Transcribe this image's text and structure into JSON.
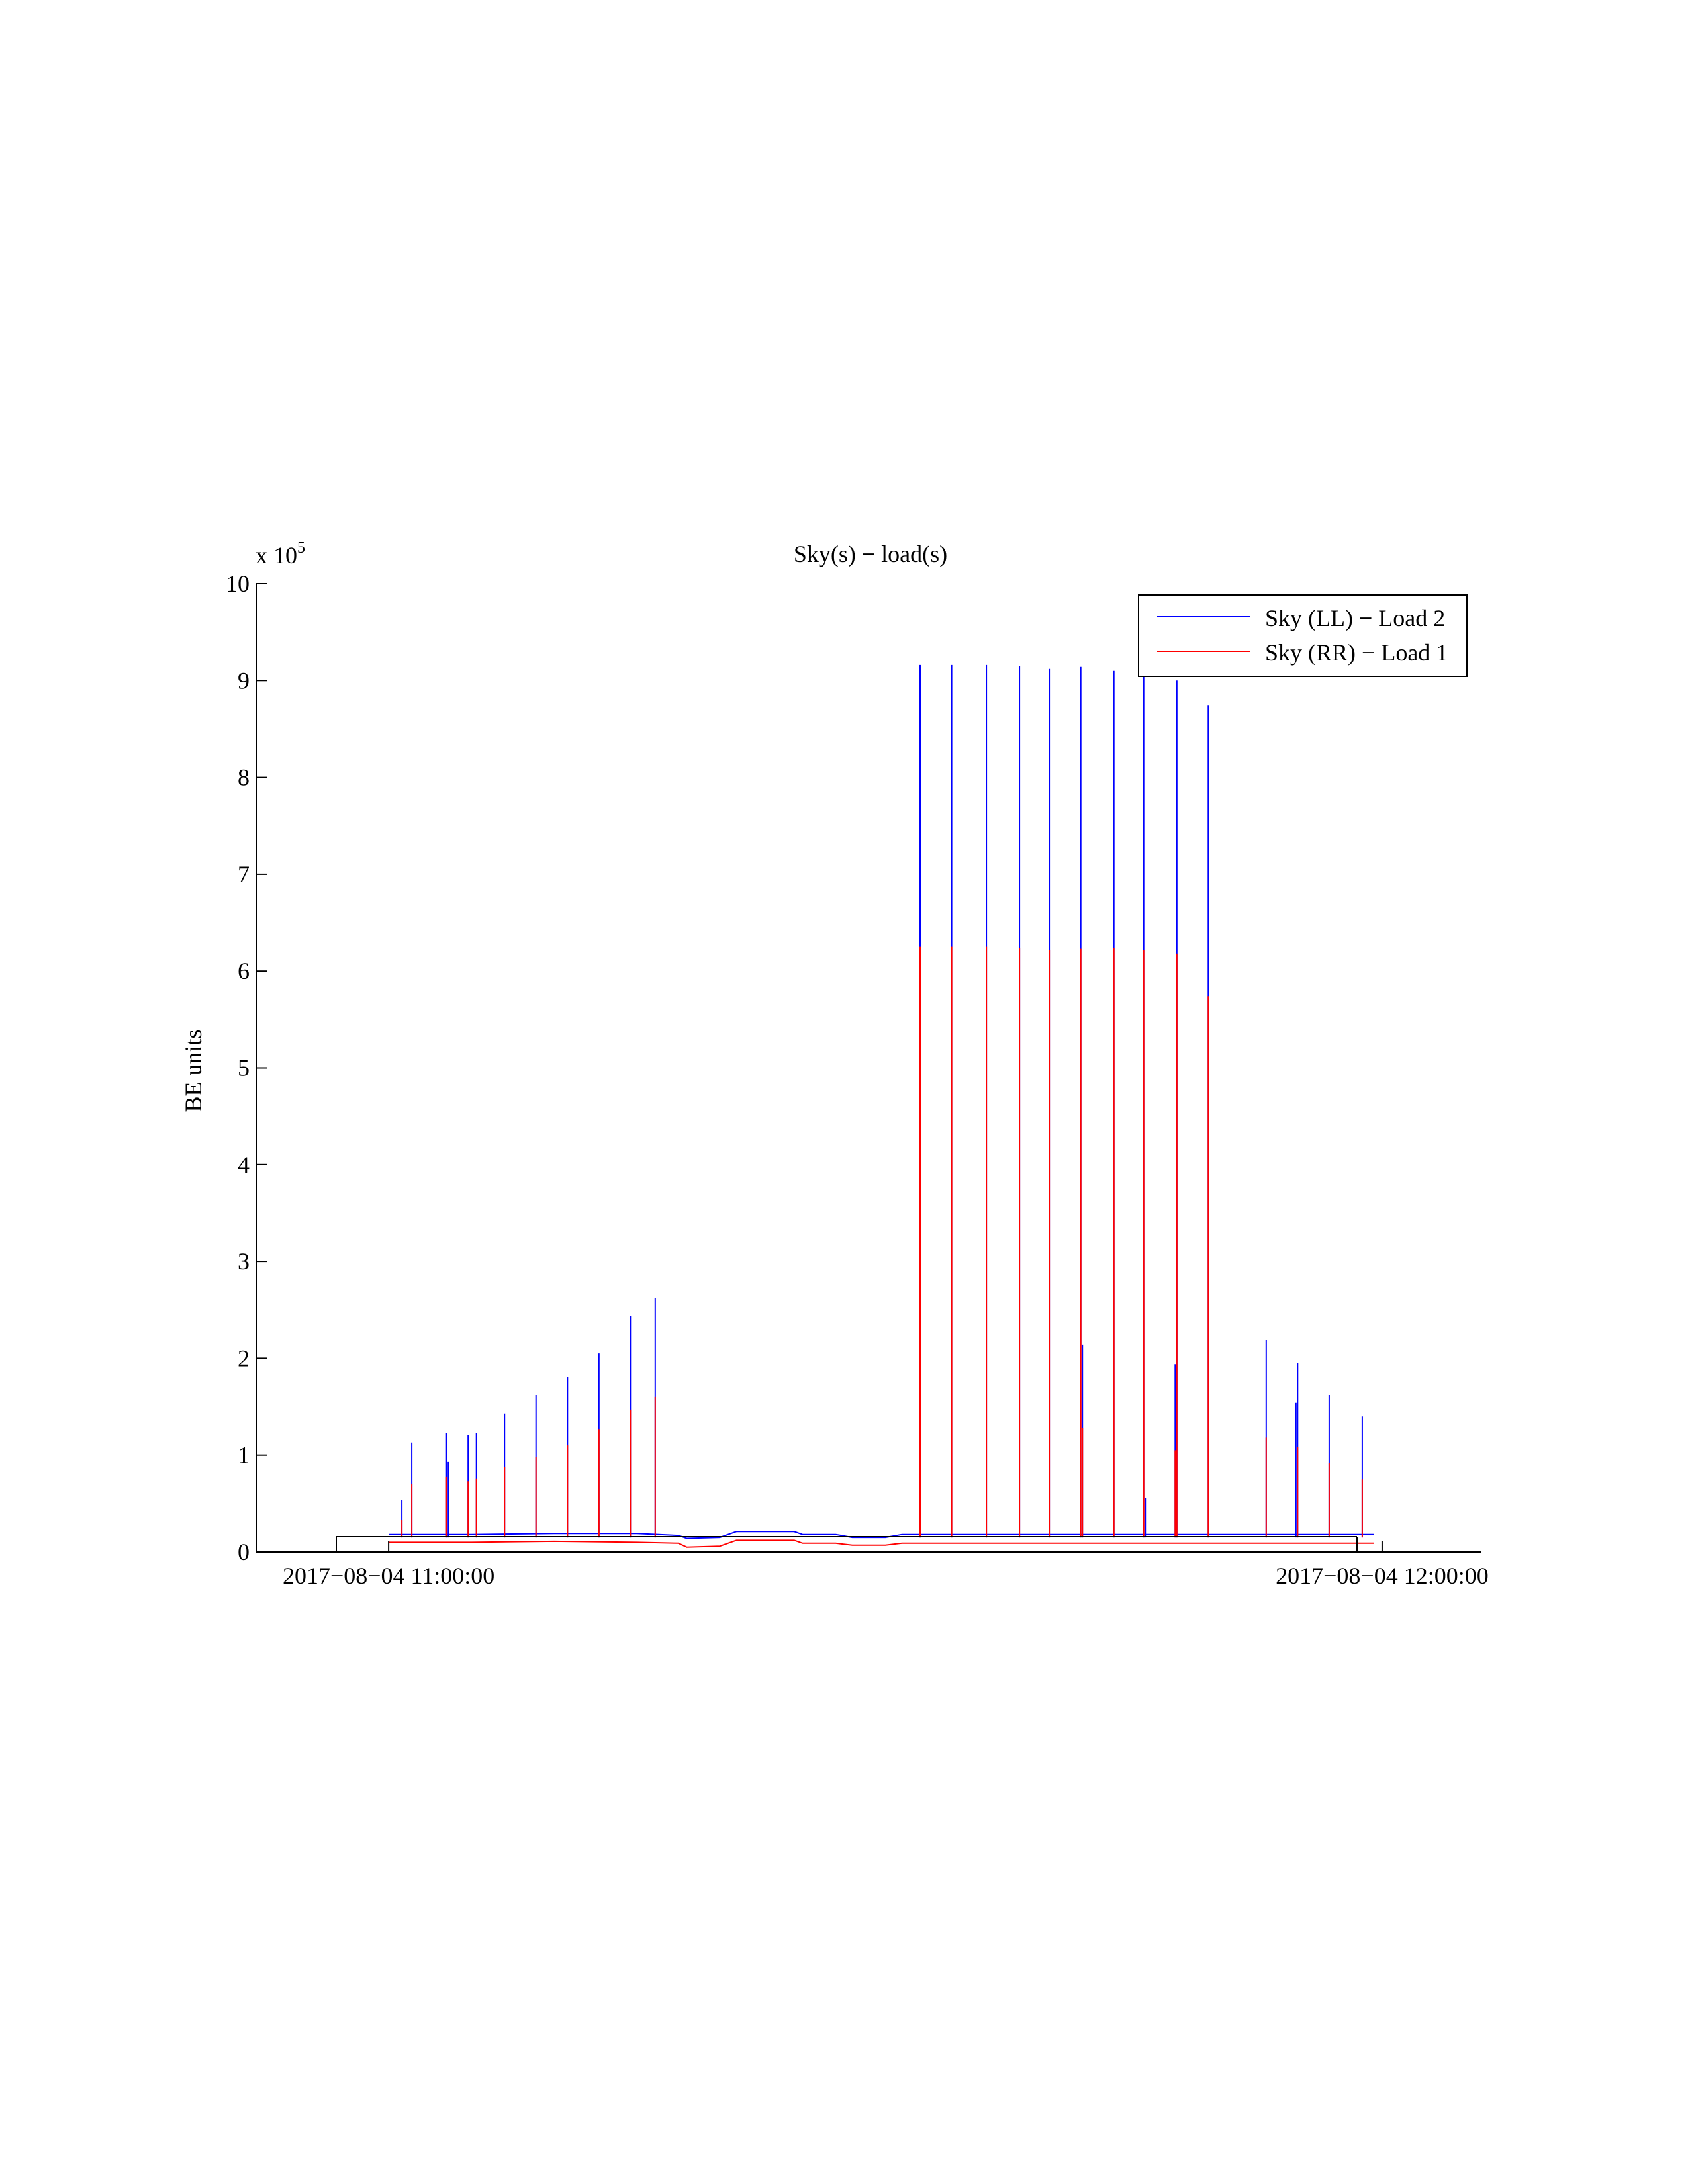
{
  "chart_data": {
    "type": "line",
    "title": "Sky(s) − load(s)",
    "ylabel": "BE units",
    "xlabel": "",
    "y_multiplier": "x 10",
    "y_multiplier_exp": "5",
    "y_scale": 100000,
    "ylim": [
      0,
      10
    ],
    "yticks": [
      "0",
      "1",
      "2",
      "3",
      "4",
      "5",
      "6",
      "7",
      "8",
      "9",
      "10"
    ],
    "xlim": [
      "2017-08-04 10:52:00",
      "2017-08-04 12:06:00"
    ],
    "xticks": [
      {
        "value": "2017-08-04 11:00:00",
        "label": "2017−08−04 11:00:00"
      },
      {
        "value": "2017-08-04 12:00:00",
        "label": "2017−08−04 12:00:00"
      }
    ],
    "data_range": [
      "2017-08-04 11:00:00",
      "2017-08-04 11:59:30"
    ],
    "grid": false,
    "legend": {
      "position": "top-right"
    },
    "series": [
      {
        "name": "Sky (LL) − Load 2",
        "color": "#0000ff",
        "baseline": [
          [
            "2017-08-04 11:00:00",
            0.18
          ],
          [
            "2017-08-04 11:05:00",
            0.18
          ],
          [
            "2017-08-04 11:10:00",
            0.19
          ],
          [
            "2017-08-04 11:15:00",
            0.19
          ],
          [
            "2017-08-04 11:17:30",
            0.17
          ],
          [
            "2017-08-04 11:18:00",
            0.14
          ],
          [
            "2017-08-04 11:20:00",
            0.15
          ],
          [
            "2017-08-04 11:21:00",
            0.21
          ],
          [
            "2017-08-04 11:24:30",
            0.21
          ],
          [
            "2017-08-04 11:25:00",
            0.18
          ],
          [
            "2017-08-04 11:27:00",
            0.18
          ],
          [
            "2017-08-04 11:28:00",
            0.15
          ],
          [
            "2017-08-04 11:30:00",
            0.15
          ],
          [
            "2017-08-04 11:31:00",
            0.18
          ],
          [
            "2017-08-04 11:40:00",
            0.18
          ],
          [
            "2017-08-04 11:50:00",
            0.18
          ],
          [
            "2017-08-04 11:59:30",
            0.18
          ]
        ],
        "spikes": [
          [
            "2017-08-04 11:00:48",
            0.54
          ],
          [
            "2017-08-04 11:01:24",
            1.13
          ],
          [
            "2017-08-04 11:03:30",
            1.23
          ],
          [
            "2017-08-04 11:03:36",
            0.93
          ],
          [
            "2017-08-04 11:04:48",
            1.21
          ],
          [
            "2017-08-04 11:05:18",
            1.23
          ],
          [
            "2017-08-04 11:07:00",
            1.43
          ],
          [
            "2017-08-04 11:08:54",
            1.62
          ],
          [
            "2017-08-04 11:10:48",
            1.81
          ],
          [
            "2017-08-04 11:12:42",
            2.05
          ],
          [
            "2017-08-04 11:14:36",
            2.44
          ],
          [
            "2017-08-04 11:16:06",
            2.62
          ],
          [
            "2017-08-04 11:32:06",
            9.16
          ],
          [
            "2017-08-04 11:34:00",
            9.16
          ],
          [
            "2017-08-04 11:36:06",
            9.16
          ],
          [
            "2017-08-04 11:38:06",
            9.15
          ],
          [
            "2017-08-04 11:39:54",
            9.12
          ],
          [
            "2017-08-04 11:41:48",
            9.14
          ],
          [
            "2017-08-04 11:41:54",
            2.14
          ],
          [
            "2017-08-04 11:43:48",
            9.1
          ],
          [
            "2017-08-04 11:45:36",
            9.12
          ],
          [
            "2017-08-04 11:45:42",
            0.56
          ],
          [
            "2017-08-04 11:47:36",
            9.0
          ],
          [
            "2017-08-04 11:47:30",
            1.94
          ],
          [
            "2017-08-04 11:49:30",
            8.74
          ],
          [
            "2017-08-04 11:53:00",
            2.19
          ],
          [
            "2017-08-04 11:54:54",
            1.95
          ],
          [
            "2017-08-04 11:54:48",
            1.54
          ],
          [
            "2017-08-04 11:56:48",
            1.62
          ],
          [
            "2017-08-04 11:58:48",
            1.4
          ]
        ]
      },
      {
        "name": "Sky (RR) − Load 1",
        "color": "#ff0000",
        "baseline": [
          [
            "2017-08-04 11:00:00",
            0.1
          ],
          [
            "2017-08-04 11:05:00",
            0.1
          ],
          [
            "2017-08-04 11:10:00",
            0.11
          ],
          [
            "2017-08-04 11:15:00",
            0.1
          ],
          [
            "2017-08-04 11:17:30",
            0.09
          ],
          [
            "2017-08-04 11:18:00",
            0.05
          ],
          [
            "2017-08-04 11:20:00",
            0.06
          ],
          [
            "2017-08-04 11:21:00",
            0.12
          ],
          [
            "2017-08-04 11:24:30",
            0.12
          ],
          [
            "2017-08-04 11:25:00",
            0.09
          ],
          [
            "2017-08-04 11:27:00",
            0.09
          ],
          [
            "2017-08-04 11:28:00",
            0.07
          ],
          [
            "2017-08-04 11:30:00",
            0.07
          ],
          [
            "2017-08-04 11:31:00",
            0.09
          ],
          [
            "2017-08-04 11:40:00",
            0.09
          ],
          [
            "2017-08-04 11:50:00",
            0.09
          ],
          [
            "2017-08-04 11:59:30",
            0.09
          ]
        ],
        "spikes": [
          [
            "2017-08-04 11:00:48",
            0.33
          ],
          [
            "2017-08-04 11:01:24",
            0.7
          ],
          [
            "2017-08-04 11:03:30",
            0.78
          ],
          [
            "2017-08-04 11:04:48",
            0.73
          ],
          [
            "2017-08-04 11:05:18",
            0.76
          ],
          [
            "2017-08-04 11:07:00",
            0.88
          ],
          [
            "2017-08-04 11:08:54",
            0.98
          ],
          [
            "2017-08-04 11:10:48",
            1.1
          ],
          [
            "2017-08-04 11:12:42",
            1.27
          ],
          [
            "2017-08-04 11:14:36",
            1.47
          ],
          [
            "2017-08-04 11:16:06",
            1.6
          ],
          [
            "2017-08-04 11:32:06",
            6.25
          ],
          [
            "2017-08-04 11:34:00",
            6.25
          ],
          [
            "2017-08-04 11:36:06",
            6.25
          ],
          [
            "2017-08-04 11:38:06",
            6.24
          ],
          [
            "2017-08-04 11:39:54",
            6.22
          ],
          [
            "2017-08-04 11:41:48",
            6.23
          ],
          [
            "2017-08-04 11:41:54",
            1.28
          ],
          [
            "2017-08-04 11:43:48",
            6.24
          ],
          [
            "2017-08-04 11:45:36",
            6.22
          ],
          [
            "2017-08-04 11:47:36",
            6.18
          ],
          [
            "2017-08-04 11:47:30",
            1.05
          ],
          [
            "2017-08-04 11:49:30",
            5.74
          ],
          [
            "2017-08-04 11:53:00",
            1.18
          ],
          [
            "2017-08-04 11:54:54",
            1.08
          ],
          [
            "2017-08-04 11:56:48",
            0.92
          ],
          [
            "2017-08-04 11:58:48",
            0.75
          ]
        ]
      }
    ]
  }
}
